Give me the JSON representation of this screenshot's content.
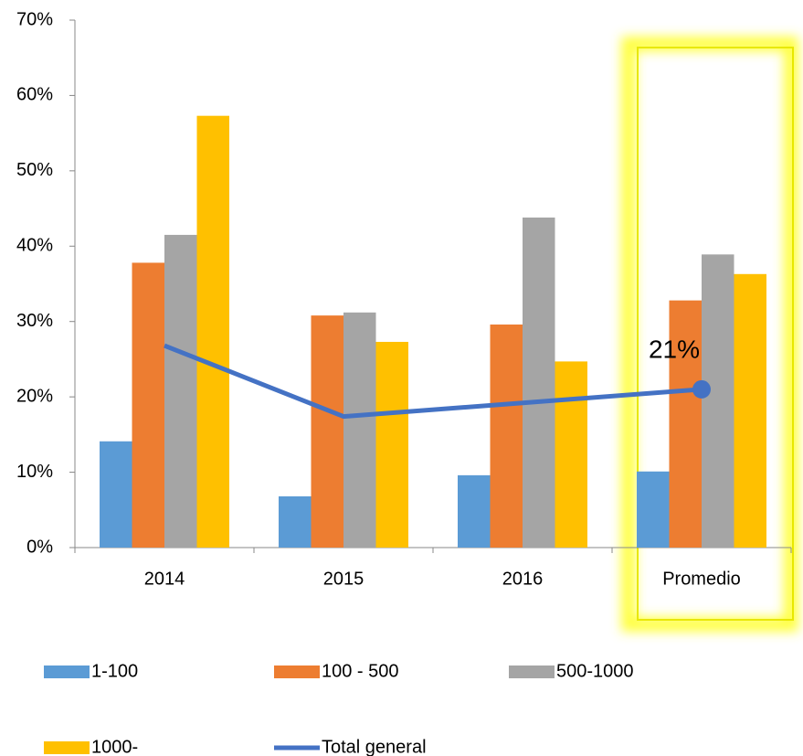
{
  "chart_data": {
    "type": "bar",
    "categories": [
      "2014",
      "2015",
      "2016",
      "Promedio"
    ],
    "series": [
      {
        "name": "1-100",
        "color": "#5b9bd5",
        "values": [
          14.1,
          6.8,
          9.6,
          10.1
        ]
      },
      {
        "name": "100 - 500",
        "color": "#ed7d31",
        "values": [
          37.8,
          30.8,
          29.6,
          32.8
        ]
      },
      {
        "name": "500-1000",
        "color": "#a5a5a5",
        "values": [
          41.5,
          31.2,
          43.8,
          38.9
        ]
      },
      {
        "name": "1000-",
        "color": "#ffc000",
        "values": [
          57.3,
          27.3,
          24.7,
          36.3
        ]
      },
      {
        "name": "Total general",
        "type": "line",
        "color": "#4472c4",
        "values": [
          26.8,
          17.4,
          19.2,
          21
        ],
        "value_labels": [
          null,
          null,
          null,
          "21%"
        ]
      }
    ],
    "ylim": [
      0,
      70
    ],
    "yticks": [
      {
        "value": 0,
        "label": "0%"
      },
      {
        "value": 10,
        "label": "10%"
      },
      {
        "value": 20,
        "label": "20%"
      },
      {
        "value": 30,
        "label": "30%"
      },
      {
        "value": 40,
        "label": "40%"
      },
      {
        "value": 50,
        "label": "50%"
      },
      {
        "value": 60,
        "label": "60%"
      },
      {
        "value": 70,
        "label": "70%"
      }
    ],
    "legend": "bottom"
  }
}
